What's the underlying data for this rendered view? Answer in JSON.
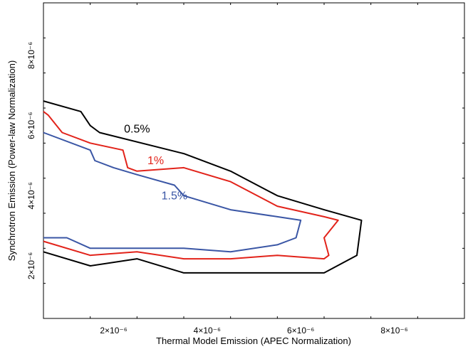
{
  "chart_data": {
    "type": "line",
    "title": "",
    "xlabel": "Thermal Model Emission (APEC Normalization)",
    "ylabel": "Synchrotron Emission (Power-law Normalization)",
    "xlim": [
      5e-07,
      9.5e-06
    ],
    "ylim": [
      5e-07,
      9.5e-06
    ],
    "grid": false,
    "legend": "none",
    "x_ticks": [
      {
        "value": 2e-06,
        "label": "2×10⁻⁶"
      },
      {
        "value": 4e-06,
        "label": "4×10⁻⁶"
      },
      {
        "value": 6e-06,
        "label": "6×10⁻⁶"
      },
      {
        "value": 8e-06,
        "label": "8×10⁻⁶"
      }
    ],
    "y_ticks": [
      {
        "value": 2e-06,
        "label": "2×10⁻⁶"
      },
      {
        "value": 4e-06,
        "label": "4×10⁻⁶"
      },
      {
        "value": 6e-06,
        "label": "6×10⁻⁶"
      },
      {
        "value": 8e-06,
        "label": "8×10⁻⁶"
      }
    ],
    "minor_step": 1e-06,
    "series": [
      {
        "name": "0.5%",
        "color": "#000000",
        "label_at": [
          2.5e-06,
          5.8e-06
        ],
        "points": [
          [
            5e-07,
            6.7e-06
          ],
          [
            1.3e-06,
            6.4e-06
          ],
          [
            1.5e-06,
            6e-06
          ],
          [
            1.7e-06,
            5.8e-06
          ],
          [
            3.5e-06,
            5.2e-06
          ],
          [
            4.5e-06,
            4.7e-06
          ],
          [
            5.5e-06,
            4e-06
          ],
          [
            6.5e-06,
            3.6e-06
          ],
          [
            7.3e-06,
            3.3e-06
          ],
          [
            7.2e-06,
            2.3e-06
          ],
          [
            6.5e-06,
            1.8e-06
          ],
          [
            4.5e-06,
            1.8e-06
          ],
          [
            3.5e-06,
            1.8e-06
          ],
          [
            2.5e-06,
            2.2e-06
          ],
          [
            1.5e-06,
            2e-06
          ],
          [
            5e-07,
            2.4e-06
          ]
        ]
      },
      {
        "name": "1%",
        "color": "#e2231a",
        "label_at": [
          2.9e-06,
          4.9e-06
        ],
        "points": [
          [
            5e-07,
            6.4e-06
          ],
          [
            6e-07,
            6.3e-06
          ],
          [
            9e-07,
            5.8e-06
          ],
          [
            1.5e-06,
            5.5e-06
          ],
          [
            2.2e-06,
            5.3e-06
          ],
          [
            2.3e-06,
            4.8e-06
          ],
          [
            2.5e-06,
            4.7e-06
          ],
          [
            3.5e-06,
            4.8e-06
          ],
          [
            4.5e-06,
            4.4e-06
          ],
          [
            5.5e-06,
            3.7e-06
          ],
          [
            6.5e-06,
            3.4e-06
          ],
          [
            6.8e-06,
            3.3e-06
          ],
          [
            6.5e-06,
            2.8e-06
          ],
          [
            6.6e-06,
            2.3e-06
          ],
          [
            6.5e-06,
            2.2e-06
          ],
          [
            5.5e-06,
            2.3e-06
          ],
          [
            4.5e-06,
            2.2e-06
          ],
          [
            3.5e-06,
            2.2e-06
          ],
          [
            2.5e-06,
            2.4e-06
          ],
          [
            1.5e-06,
            2.3e-06
          ],
          [
            5e-07,
            2.7e-06
          ]
        ]
      },
      {
        "name": "1.5%",
        "color": "#3a56a5",
        "label_at": [
          3.3e-06,
          3.9e-06
        ],
        "points": [
          [
            5e-07,
            5.8e-06
          ],
          [
            1.5e-06,
            5.3e-06
          ],
          [
            1.6e-06,
            5e-06
          ],
          [
            2e-06,
            4.8e-06
          ],
          [
            2.5e-06,
            4.6e-06
          ],
          [
            3.3e-06,
            4.3e-06
          ],
          [
            3.5e-06,
            4e-06
          ],
          [
            4.5e-06,
            3.6e-06
          ],
          [
            5.5e-06,
            3.4e-06
          ],
          [
            6e-06,
            3.3e-06
          ],
          [
            5.9e-06,
            2.8e-06
          ],
          [
            5.5e-06,
            2.6e-06
          ],
          [
            4.5e-06,
            2.4e-06
          ],
          [
            3.5e-06,
            2.5e-06
          ],
          [
            2.5e-06,
            2.5e-06
          ],
          [
            1.5e-06,
            2.5e-06
          ],
          [
            1e-06,
            2.8e-06
          ],
          [
            5e-07,
            2.8e-06
          ]
        ]
      }
    ]
  }
}
